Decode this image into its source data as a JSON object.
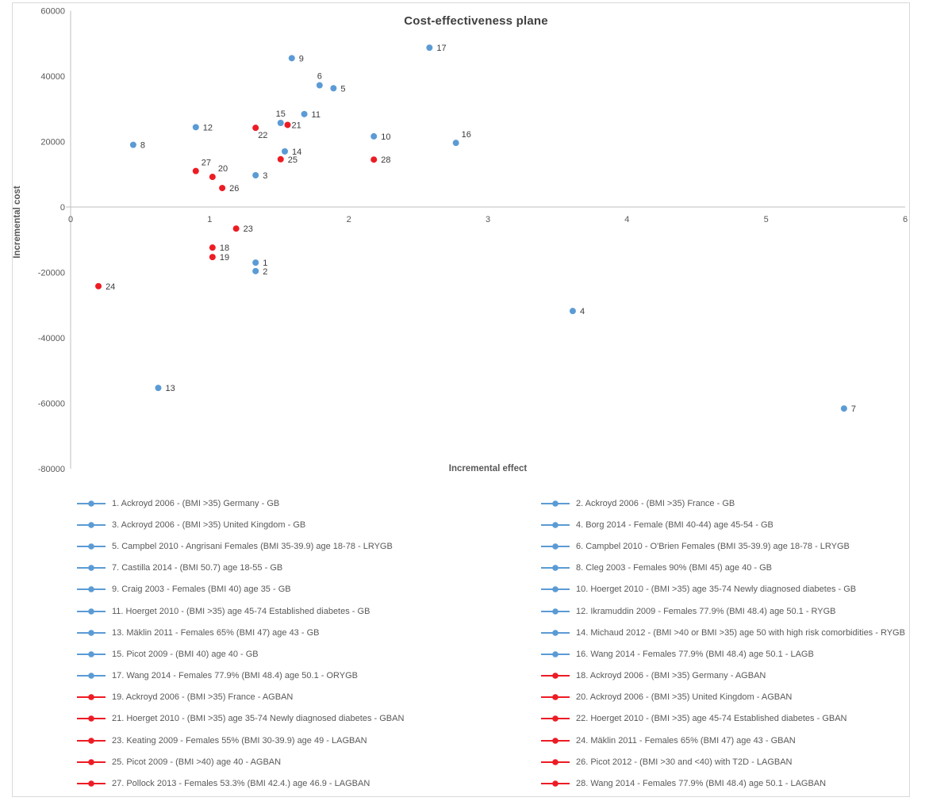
{
  "chart_data": {
    "type": "scatter",
    "title": "Cost-effectiveness plane",
    "xlabel": "Incremental effect",
    "ylabel": "Incremental cost",
    "xlim": [
      0,
      6
    ],
    "ylim": [
      -80000,
      60000
    ],
    "x_ticks": [
      0,
      1,
      2,
      3,
      4,
      5,
      6
    ],
    "y_ticks": [
      60000,
      40000,
      20000,
      0,
      -20000,
      -40000,
      -60000,
      -80000
    ],
    "grid": false,
    "legend_position": "bottom-two-columns",
    "colors": {
      "blue_series": "#5b9bd5",
      "red_series": "#ed1c24",
      "axis_line": "#bfbfbf",
      "tick_text": "#595959",
      "point_label_text": "#3b3b3b",
      "title_text": "#404040"
    },
    "series": [
      {
        "color": "#5b9bd5",
        "points": [
          {
            "label": "1",
            "x": 1.33,
            "y": -17000,
            "label_pos": "right"
          },
          {
            "label": "2",
            "x": 1.33,
            "y": -19600,
            "label_pos": "right"
          },
          {
            "label": "3",
            "x": 1.33,
            "y": 9700,
            "label_pos": "right"
          },
          {
            "label": "4",
            "x": 3.61,
            "y": -31800,
            "label_pos": "right"
          },
          {
            "label": "5",
            "x": 1.89,
            "y": 36300,
            "label_pos": "right"
          },
          {
            "label": "6",
            "x": 1.79,
            "y": 37200,
            "label_pos": "above"
          },
          {
            "label": "7",
            "x": 5.56,
            "y": -61600,
            "label_pos": "right"
          },
          {
            "label": "8",
            "x": 0.45,
            "y": 19000,
            "label_pos": "right"
          },
          {
            "label": "9",
            "x": 1.59,
            "y": 45500,
            "label_pos": "right"
          },
          {
            "label": "10",
            "x": 2.18,
            "y": 21600,
            "label_pos": "right"
          },
          {
            "label": "11",
            "x": 1.68,
            "y": 28400,
            "label_pos": "right"
          },
          {
            "label": "12",
            "x": 0.9,
            "y": 24400,
            "label_pos": "right"
          },
          {
            "label": "13",
            "x": 0.63,
            "y": -55300,
            "label_pos": "right"
          },
          {
            "label": "14",
            "x": 1.54,
            "y": 17000,
            "label_pos": "right"
          },
          {
            "label": "15",
            "x": 1.51,
            "y": 25700,
            "label_pos": "above"
          },
          {
            "label": "16",
            "x": 2.77,
            "y": 19600,
            "label_pos": "above-right"
          },
          {
            "label": "17",
            "x": 2.58,
            "y": 48700,
            "label_pos": "right"
          }
        ]
      },
      {
        "color": "#ed1c24",
        "points": [
          {
            "label": "18",
            "x": 1.02,
            "y": -12400,
            "label_pos": "right"
          },
          {
            "label": "19",
            "x": 1.02,
            "y": -15300,
            "label_pos": "right"
          },
          {
            "label": "20",
            "x": 1.02,
            "y": 9200,
            "label_pos": "above-right"
          },
          {
            "label": "21",
            "x": 1.56,
            "y": 25100,
            "label_pos": "right-close"
          },
          {
            "label": "22",
            "x": 1.33,
            "y": 24200,
            "label_pos": "below-right"
          },
          {
            "label": "23",
            "x": 1.19,
            "y": -6600,
            "label_pos": "right"
          },
          {
            "label": "24",
            "x": 0.2,
            "y": -24200,
            "label_pos": "right"
          },
          {
            "label": "25",
            "x": 1.51,
            "y": 14600,
            "label_pos": "right"
          },
          {
            "label": "26",
            "x": 1.09,
            "y": 5800,
            "label_pos": "right"
          },
          {
            "label": "27",
            "x": 0.9,
            "y": 11000,
            "label_pos": "above-right"
          },
          {
            "label": "28",
            "x": 2.18,
            "y": 14500,
            "label_pos": "right"
          }
        ]
      }
    ],
    "legend": [
      {
        "num": 1,
        "color": "#5b9bd5",
        "label": "1. Ackroyd 2006 - (BMI >35) Germany - GB"
      },
      {
        "num": 2,
        "color": "#5b9bd5",
        "label": "2. Ackroyd 2006 - (BMI >35) France - GB"
      },
      {
        "num": 3,
        "color": "#5b9bd5",
        "label": "3. Ackroyd 2006 - (BMI >35) United Kingdom - GB"
      },
      {
        "num": 4,
        "color": "#5b9bd5",
        "label": "4. Borg 2014 - Female (BMI 40-44) age 45-54 - GB"
      },
      {
        "num": 5,
        "color": "#5b9bd5",
        "label": "5. Campbel 2010 - Angrisani Females (BMI 35-39.9) age 18-78 - LRYGB"
      },
      {
        "num": 6,
        "color": "#5b9bd5",
        "label": "6. Campbel 2010 - O'Brien Females (BMI 35-39.9) age 18-78 - LRYGB"
      },
      {
        "num": 7,
        "color": "#5b9bd5",
        "label": "7. Castilla 2014 - (BMI 50.7) age 18-55 - GB"
      },
      {
        "num": 8,
        "color": "#5b9bd5",
        "label": "8. Cleg 2003 - Females 90% (BMI 45) age 40 - GB"
      },
      {
        "num": 9,
        "color": "#5b9bd5",
        "label": "9. Craig 2003 - Females (BMI 40) age 35 - GB"
      },
      {
        "num": 10,
        "color": "#5b9bd5",
        "label": "10. Hoerget 2010 - (BMI >35) age 35-74 Newly diagnosed diabetes - GB"
      },
      {
        "num": 11,
        "color": "#5b9bd5",
        "label": "11. Hoerget 2010 - (BMI >35) age 45-74 Established diabetes - GB"
      },
      {
        "num": 12,
        "color": "#5b9bd5",
        "label": "12. Ikramuddin 2009 - Females 77.9% (BMI 48.4) age 50.1 - RYGB"
      },
      {
        "num": 13,
        "color": "#5b9bd5",
        "label": "13. Mäklin 2011 - Females 65% (BMI 47) age 43 - GB"
      },
      {
        "num": 14,
        "color": "#5b9bd5",
        "label": "14. Michaud 2012 - (BMI >40 or BMI >35) age 50 with high risk comorbidities - RYGB"
      },
      {
        "num": 15,
        "color": "#5b9bd5",
        "label": "15. Picot 2009 - (BMI 40) age 40 - GB"
      },
      {
        "num": 16,
        "color": "#5b9bd5",
        "label": "16. Wang 2014 - Females 77.9% (BMI 48.4) age 50.1 - LAGB"
      },
      {
        "num": 17,
        "color": "#5b9bd5",
        "label": "17. Wang 2014 - Females 77.9% (BMI 48.4) age 50.1 - ORYGB"
      },
      {
        "num": 18,
        "color": "#ed1c24",
        "label": "18. Ackroyd 2006 - (BMI >35) Germany - AGBAN"
      },
      {
        "num": 19,
        "color": "#ed1c24",
        "label": "19. Ackroyd 2006 - (BMI >35) France - AGBAN"
      },
      {
        "num": 20,
        "color": "#ed1c24",
        "label": "20. Ackroyd 2006 - (BMI >35) United Kingdom - AGBAN"
      },
      {
        "num": 21,
        "color": "#ed1c24",
        "label": "21. Hoerget 2010 - (BMI >35) age 35-74 Newly diagnosed diabetes - GBAN"
      },
      {
        "num": 22,
        "color": "#ed1c24",
        "label": "22. Hoerget 2010 - (BMI >35) age 45-74 Established diabetes - GBAN"
      },
      {
        "num": 23,
        "color": "#ed1c24",
        "label": "23. Keating 2009 - Females 55% (BMI 30-39.9) age 49 - LAGBAN"
      },
      {
        "num": 24,
        "color": "#ed1c24",
        "label": "24. Mäklin 2011 - Females 65% (BMI 47) age 43 - GBAN"
      },
      {
        "num": 25,
        "color": "#ed1c24",
        "label": "25. Picot 2009 - (BMI >40) age 40 - AGBAN"
      },
      {
        "num": 26,
        "color": "#ed1c24",
        "label": "26. Picot 2012 - (BMI >30 and <40) with T2D - LAGBAN"
      },
      {
        "num": 27,
        "color": "#ed1c24",
        "label": "27. Pollock 2013 - Females 53.3% (BMI 42.4.) age 46.9 - LAGBAN"
      },
      {
        "num": 28,
        "color": "#ed1c24",
        "label": "28. Wang 2014 - Females 77.9% (BMI 48.4) age 50.1 - LAGBAN"
      }
    ]
  }
}
